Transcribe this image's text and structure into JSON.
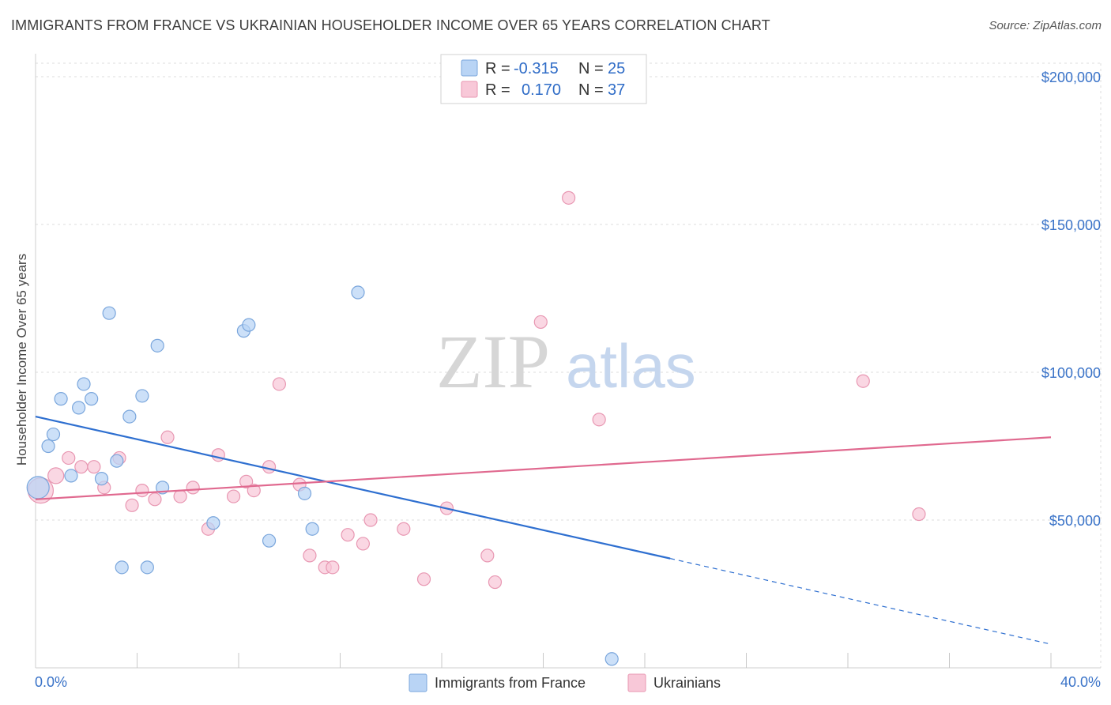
{
  "title": "IMMIGRANTS FROM FRANCE VS UKRAINIAN HOUSEHOLDER INCOME OVER 65 YEARS CORRELATION CHART",
  "source": "Source: ZipAtlas.com",
  "watermark": {
    "zip": "ZIP",
    "atlas": "atlas"
  },
  "legend": {
    "rows": [
      {
        "r_label": "R =",
        "r_value": "-0.315",
        "n_label": "N =",
        "n_value": "25"
      },
      {
        "r_label": "R =",
        "r_value": "0.170",
        "n_label": "N =",
        "n_value": "37"
      }
    ]
  },
  "colors": {
    "blue_fill": "#b9d4f5",
    "blue_stroke": "#7aa6dc",
    "blue_line": "#2e6fd0",
    "pink_fill": "#f8c8d8",
    "pink_stroke": "#e897b2",
    "pink_line": "#e0698f",
    "grid": "#dcdcdc",
    "axis_text": "#3a73c8"
  },
  "chart_data": {
    "type": "scatter",
    "title": "IMMIGRANTS FROM FRANCE VS UKRAINIAN HOUSEHOLDER INCOME OVER 65 YEARS CORRELATION CHART",
    "xlabel": "",
    "ylabel": "Householder Income Over 65 years",
    "xlim": [
      0,
      40
    ],
    "ylim": [
      0,
      205000
    ],
    "x_tick_labels": {
      "left": "0.0%",
      "right": "40.0%"
    },
    "y_ticks": [
      {
        "value": 50000,
        "label": "$50,000"
      },
      {
        "value": 100000,
        "label": "$100,000"
      },
      {
        "value": 150000,
        "label": "$150,000"
      },
      {
        "value": 200000,
        "label": "$200,000"
      }
    ],
    "series": [
      {
        "name": "Immigrants from France",
        "color": "blue",
        "points": [
          [
            0.1,
            61000,
            14
          ],
          [
            0.5,
            75000,
            8
          ],
          [
            0.7,
            79000,
            8
          ],
          [
            1.0,
            91000,
            8
          ],
          [
            1.4,
            65000,
            8
          ],
          [
            1.7,
            88000,
            8
          ],
          [
            1.9,
            96000,
            8
          ],
          [
            2.2,
            91000,
            8
          ],
          [
            2.6,
            64000,
            8
          ],
          [
            2.9,
            120000,
            8
          ],
          [
            3.2,
            70000,
            8
          ],
          [
            3.4,
            34000,
            8
          ],
          [
            3.7,
            85000,
            8
          ],
          [
            4.2,
            92000,
            8
          ],
          [
            4.4,
            34000,
            8
          ],
          [
            4.8,
            109000,
            8
          ],
          [
            5.0,
            61000,
            8
          ],
          [
            7.0,
            49000,
            8
          ],
          [
            8.2,
            114000,
            8
          ],
          [
            8.4,
            116000,
            8
          ],
          [
            9.2,
            43000,
            8
          ],
          [
            10.6,
            59000,
            8
          ],
          [
            10.9,
            47000,
            8
          ],
          [
            12.7,
            127000,
            8
          ],
          [
            22.7,
            3000,
            8
          ]
        ],
        "trend": {
          "x1": 0,
          "y1": 85000,
          "x2": 25,
          "y2": 37000,
          "dash_to_x": 40,
          "dash_to_y": 8000
        }
      },
      {
        "name": "Ukrainians",
        "color": "pink",
        "points": [
          [
            0.2,
            60000,
            16
          ],
          [
            0.8,
            65000,
            10
          ],
          [
            1.3,
            71000,
            8
          ],
          [
            1.8,
            68000,
            8
          ],
          [
            2.3,
            68000,
            8
          ],
          [
            2.7,
            61000,
            8
          ],
          [
            3.3,
            71000,
            8
          ],
          [
            3.8,
            55000,
            8
          ],
          [
            4.2,
            60000,
            8
          ],
          [
            4.7,
            57000,
            8
          ],
          [
            5.2,
            78000,
            8
          ],
          [
            5.7,
            58000,
            8
          ],
          [
            6.2,
            61000,
            8
          ],
          [
            6.8,
            47000,
            8
          ],
          [
            7.2,
            72000,
            8
          ],
          [
            7.8,
            58000,
            8
          ],
          [
            8.3,
            63000,
            8
          ],
          [
            8.6,
            60000,
            8
          ],
          [
            9.2,
            68000,
            8
          ],
          [
            9.6,
            96000,
            8
          ],
          [
            10.4,
            62000,
            8
          ],
          [
            10.8,
            38000,
            8
          ],
          [
            11.4,
            34000,
            8
          ],
          [
            11.7,
            34000,
            8
          ],
          [
            12.3,
            45000,
            8
          ],
          [
            12.9,
            42000,
            8
          ],
          [
            13.2,
            50000,
            8
          ],
          [
            14.5,
            47000,
            8
          ],
          [
            15.3,
            30000,
            8
          ],
          [
            16.2,
            54000,
            8
          ],
          [
            17.8,
            38000,
            8
          ],
          [
            18.1,
            29000,
            8
          ],
          [
            19.9,
            117000,
            8
          ],
          [
            21.0,
            159000,
            8
          ],
          [
            22.2,
            84000,
            8
          ],
          [
            32.6,
            97000,
            8
          ],
          [
            34.8,
            52000,
            8
          ]
        ],
        "trend": {
          "x1": 0,
          "y1": 57000,
          "x2": 40,
          "y2": 78000
        }
      }
    ],
    "legend_position": "top-center",
    "grid": true
  }
}
